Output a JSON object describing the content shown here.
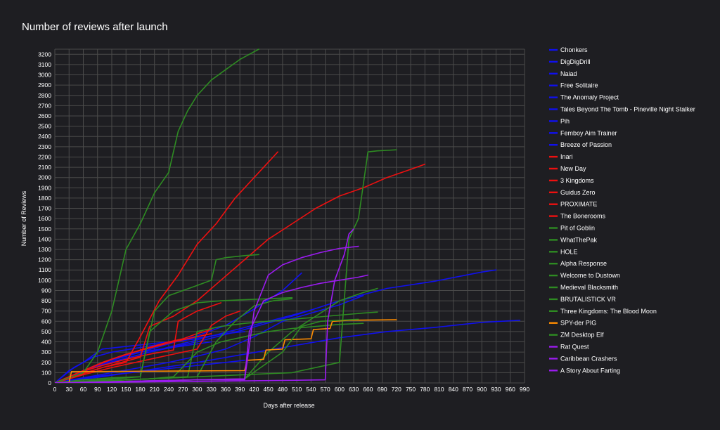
{
  "chart_data": {
    "type": "line",
    "title": "Number of reviews after launch",
    "xlabel": "Days after release",
    "ylabel": "Number of Reviews",
    "xlim": [
      0,
      990
    ],
    "ylim": [
      0,
      3250
    ],
    "x_ticks": [
      0,
      30,
      60,
      90,
      120,
      150,
      180,
      210,
      240,
      270,
      300,
      330,
      360,
      390,
      420,
      450,
      480,
      510,
      540,
      570,
      600,
      630,
      660,
      690,
      720,
      750,
      780,
      810,
      840,
      870,
      900,
      930,
      960,
      990
    ],
    "y_ticks": [
      0,
      100,
      200,
      300,
      400,
      500,
      600,
      700,
      800,
      900,
      1000,
      1100,
      1200,
      1300,
      1400,
      1500,
      1600,
      1700,
      1800,
      1900,
      2000,
      2100,
      2200,
      2300,
      2400,
      2500,
      2600,
      2700,
      2800,
      2900,
      3000,
      3100,
      3200
    ],
    "grid": true,
    "legend_position": "right",
    "colors": {
      "background": "#1e1e22",
      "grid": "#4a4a4a",
      "blue": "#1010ee",
      "red": "#ee1010",
      "green": "#2e8b22",
      "orange": "#ff8c00",
      "purple": "#9b1bf0"
    },
    "series": [
      {
        "name": "Chonkers",
        "color": "#1010ee",
        "x": [
          0,
          60,
          120,
          180,
          240,
          300,
          360,
          420,
          480,
          520
        ],
        "y": [
          0,
          120,
          220,
          300,
          380,
          460,
          560,
          720,
          900,
          1070
        ]
      },
      {
        "name": "DigDigDrill",
        "color": "#1010ee",
        "x": [
          0,
          100,
          200,
          300,
          400,
          500,
          600,
          700,
          800,
          900,
          930
        ],
        "y": [
          0,
          180,
          300,
          400,
          520,
          650,
          800,
          920,
          990,
          1080,
          1100
        ]
      },
      {
        "name": "Naiad",
        "color": "#1010ee",
        "x": [
          0,
          100,
          200,
          300,
          400,
          500,
          600,
          700,
          800,
          900,
          980
        ],
        "y": [
          0,
          60,
          130,
          200,
          280,
          360,
          440,
          500,
          540,
          590,
          610
        ]
      },
      {
        "name": "Free Solitaire",
        "color": "#1010ee",
        "x": [
          0,
          50,
          100,
          150,
          200,
          250,
          300,
          350,
          400,
          450,
          500,
          540
        ],
        "y": [
          0,
          100,
          180,
          240,
          300,
          360,
          420,
          480,
          540,
          600,
          660,
          710
        ]
      },
      {
        "name": "The Anomaly Project",
        "color": "#1010ee",
        "x": [
          0,
          40,
          80,
          120,
          160,
          200,
          240,
          280,
          320,
          360,
          400
        ],
        "y": [
          0,
          150,
          250,
          300,
          330,
          360,
          390,
          420,
          450,
          480,
          500
        ]
      },
      {
        "name": "Tales Beyond The Tomb - Pineville Night Stalker",
        "color": "#1010ee",
        "x": [
          0,
          60,
          120,
          180,
          240,
          300,
          360,
          420,
          480,
          540,
          600,
          650
        ],
        "y": [
          0,
          50,
          100,
          150,
          200,
          260,
          330,
          450,
          600,
          680,
          760,
          850
        ]
      },
      {
        "name": "Pih",
        "color": "#1010ee",
        "x": [
          0,
          30,
          60,
          90,
          120,
          150,
          180,
          210,
          240,
          270,
          300,
          330
        ],
        "y": [
          0,
          60,
          120,
          180,
          230,
          270,
          300,
          320,
          340,
          360,
          380,
          400
        ]
      },
      {
        "name": "Femboy Aim Trainer",
        "color": "#1010ee",
        "x": [
          0,
          40,
          80,
          120,
          160,
          200,
          240,
          280,
          320,
          360,
          400
        ],
        "y": [
          0,
          30,
          60,
          80,
          100,
          120,
          140,
          160,
          180,
          200,
          220
        ]
      },
      {
        "name": "Breeze of Passion",
        "color": "#1010ee",
        "x": [
          0,
          30,
          60,
          90,
          100,
          140,
          180,
          220,
          260,
          300
        ],
        "y": [
          0,
          120,
          200,
          300,
          330,
          350,
          370,
          390,
          410,
          430
        ]
      },
      {
        "name": "Inari",
        "color": "#ee1010",
        "x": [
          0,
          50,
          100,
          150,
          180,
          220,
          260,
          300,
          340,
          380,
          420,
          460,
          470
        ],
        "y": [
          0,
          80,
          150,
          200,
          450,
          800,
          1050,
          1350,
          1550,
          1800,
          2000,
          2200,
          2250
        ]
      },
      {
        "name": "New Day",
        "color": "#ee1010",
        "x": [
          0,
          100,
          180,
          200,
          250,
          300,
          350,
          400,
          450,
          500,
          550,
          600,
          650,
          700,
          750,
          780
        ],
        "y": [
          0,
          150,
          250,
          550,
          650,
          800,
          1000,
          1200,
          1400,
          1550,
          1700,
          1820,
          1900,
          2000,
          2080,
          2130
        ]
      },
      {
        "name": "3 Kingdoms",
        "color": "#ee1010",
        "x": [
          0,
          50,
          100,
          150,
          200,
          250,
          300,
          330
        ],
        "y": [
          0,
          100,
          200,
          280,
          340,
          400,
          450,
          480
        ]
      },
      {
        "name": "Guidus Zero",
        "color": "#ee1010",
        "x": [
          0,
          60,
          120,
          180,
          240,
          270,
          300,
          330
        ],
        "y": [
          0,
          120,
          230,
          320,
          400,
          430,
          480,
          520
        ]
      },
      {
        "name": "PROXIMATE",
        "color": "#ee1010",
        "x": [
          0,
          50,
          100,
          150,
          200,
          250,
          260,
          300,
          350
        ],
        "y": [
          0,
          100,
          170,
          230,
          280,
          320,
          600,
          700,
          780
        ]
      },
      {
        "name": "The Bonerooms",
        "color": "#ee1010",
        "x": [
          0,
          60,
          120,
          180,
          240,
          300,
          330,
          360,
          390
        ],
        "y": [
          0,
          80,
          150,
          210,
          270,
          330,
          560,
          650,
          700
        ]
      },
      {
        "name": "Pit of Goblin",
        "color": "#2e8b22",
        "x": [
          0,
          60,
          90,
          120,
          150,
          180,
          210,
          240,
          260,
          280,
          300,
          330,
          360,
          390,
          410,
          430
        ],
        "y": [
          0,
          100,
          300,
          700,
          1300,
          1550,
          1850,
          2050,
          2450,
          2650,
          2800,
          2950,
          3050,
          3150,
          3200,
          3250
        ]
      },
      {
        "name": "WhatThePak",
        "color": "#2e8b22",
        "x": [
          0,
          60,
          120,
          180,
          210,
          240,
          270,
          300,
          330,
          340,
          360,
          400,
          430
        ],
        "y": [
          0,
          30,
          50,
          60,
          700,
          850,
          900,
          950,
          1000,
          1200,
          1220,
          1240,
          1250
        ]
      },
      {
        "name": "HOLE",
        "color": "#2e8b22",
        "x": [
          0,
          100,
          200,
          300,
          400,
          500,
          600,
          620,
          640,
          660,
          680,
          700,
          720
        ],
        "y": [
          0,
          20,
          40,
          60,
          80,
          100,
          200,
          1400,
          1600,
          2250,
          2260,
          2265,
          2270
        ]
      },
      {
        "name": "Alpha Response",
        "color": "#2e8b22",
        "x": [
          0,
          100,
          200,
          280,
          300,
          350,
          400,
          450,
          500,
          550,
          600,
          650,
          680
        ],
        "y": [
          0,
          20,
          40,
          60,
          500,
          550,
          580,
          600,
          620,
          640,
          660,
          680,
          690
        ]
      },
      {
        "name": "Welcome to Dustown",
        "color": "#2e8b22",
        "x": [
          0,
          100,
          180,
          200,
          250,
          300,
          350,
          400,
          450,
          500
        ],
        "y": [
          0,
          30,
          60,
          500,
          700,
          780,
          800,
          810,
          820,
          830
        ]
      },
      {
        "name": "Medieval Blacksmith",
        "color": "#2e8b22",
        "x": [
          0,
          100,
          200,
          250,
          300,
          350,
          400,
          450,
          500,
          550,
          600,
          650
        ],
        "y": [
          0,
          20,
          40,
          60,
          300,
          400,
          450,
          500,
          530,
          550,
          570,
          580
        ]
      },
      {
        "name": "BRUTALISTICK VR",
        "color": "#2e8b22",
        "x": [
          0,
          100,
          200,
          300,
          400,
          450,
          500,
          550,
          600,
          650,
          680
        ],
        "y": [
          0,
          10,
          20,
          30,
          40,
          300,
          500,
          650,
          800,
          880,
          920
        ]
      },
      {
        "name": "Three Kingdoms: The Blood Moon",
        "color": "#2e8b22",
        "x": [
          0,
          100,
          200,
          300,
          340,
          380,
          420,
          460,
          500
        ],
        "y": [
          0,
          20,
          40,
          60,
          400,
          600,
          750,
          800,
          820
        ]
      },
      {
        "name": "SPY-der PIG",
        "color": "#ff8c00",
        "x": [
          0,
          30,
          35,
          400,
          405,
          440,
          445,
          480,
          485,
          540,
          545,
          580,
          585,
          620,
          720
        ],
        "y": [
          0,
          5,
          110,
          120,
          220,
          230,
          320,
          330,
          420,
          430,
          520,
          530,
          600,
          610,
          615
        ]
      },
      {
        "name": "ZM Desktop Elf",
        "color": "#2e8b22",
        "x": [
          0,
          100,
          200,
          300,
          400,
          480,
          520,
          560,
          600,
          640
        ],
        "y": [
          0,
          10,
          20,
          30,
          40,
          300,
          550,
          600,
          610,
          620
        ]
      },
      {
        "name": "Rat Quest",
        "color": "#9b1bf0",
        "x": [
          0,
          100,
          200,
          300,
          400,
          420,
          450,
          480,
          520,
          560,
          600,
          640
        ],
        "y": [
          0,
          10,
          20,
          30,
          30,
          700,
          1050,
          1150,
          1220,
          1270,
          1310,
          1330
        ]
      },
      {
        "name": "Caribbean Crashers",
        "color": "#9b1bf0",
        "x": [
          0,
          100,
          200,
          300,
          400,
          410,
          440,
          480,
          520,
          560,
          600,
          640,
          660
        ],
        "y": [
          0,
          10,
          20,
          30,
          40,
          500,
          800,
          880,
          930,
          970,
          1000,
          1030,
          1050
        ]
      },
      {
        "name": "A Story About Farting",
        "color": "#9b1bf0",
        "x": [
          0,
          100,
          200,
          300,
          400,
          500,
          570,
          575,
          590,
          610,
          620,
          630
        ],
        "y": [
          0,
          5,
          10,
          15,
          20,
          25,
          30,
          600,
          1000,
          1250,
          1450,
          1500
        ]
      }
    ]
  }
}
